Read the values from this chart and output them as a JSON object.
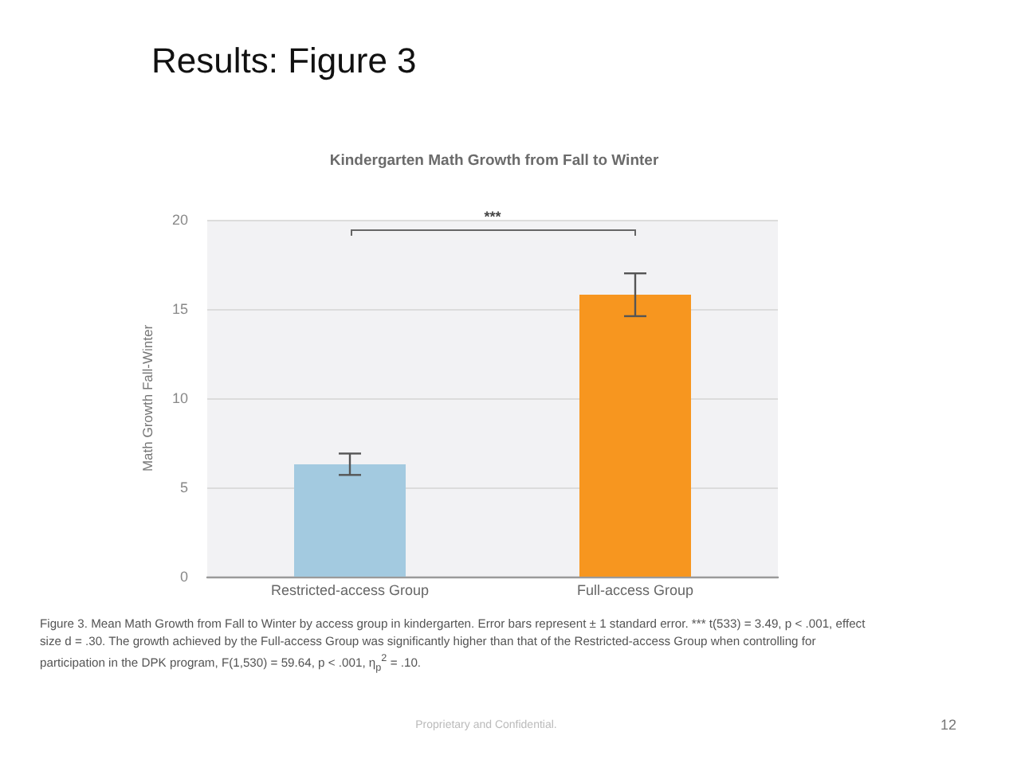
{
  "chart_data": {
    "type": "bar",
    "title": "Results: Figure 3",
    "subtitle": "Kindergarten Math Growth from Fall to Winter",
    "ylabel": "Math Growth Fall-Winter",
    "categories": [
      "Restricted-access Group",
      "Full-access Group"
    ],
    "values": [
      6.3,
      15.8
    ],
    "errors": [
      0.6,
      1.2
    ],
    "colors": [
      "#a3cae0",
      "#f7961f"
    ],
    "ylim": [
      0,
      20
    ],
    "yticks": [
      0,
      5,
      10,
      15,
      20
    ],
    "grid": "y",
    "annotations": [
      "***",
      "Figure 3. Mean Math Growth from Fall to Winter by access group in kindergarten. Error bars represent ± 1 standard error. *** t(533) = 3.49, p < .001, effect size d = .30. The growth achieved by the Full-access Group was significantly higher than that of the Restricted-access Group when controlling for participation in the DPK program, F(1,530) = 59.64, p < .001, η$_{p}$$^{2}$ = .10.",
      "Proprietary and Confidential.",
      "12"
    ]
  }
}
